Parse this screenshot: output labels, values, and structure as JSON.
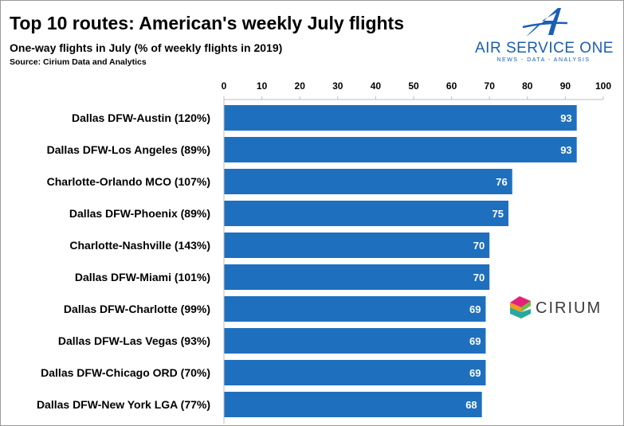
{
  "header": {
    "title": "Top 10 routes: American's weekly July flights",
    "subtitle": "One-way flights in July (% of weekly flights in 2019)",
    "source": "Source: Cirium Data and Analytics"
  },
  "logo": {
    "name": "AIR SERVICE ONE",
    "tagline": "NEWS - DATA - ANALYSIS",
    "icon": "stylized-a-icon",
    "color": "#1a5fb4"
  },
  "partner_logo": {
    "name": "CIRIUM",
    "icon": "cirium-chevron-icon"
  },
  "chart_data": {
    "type": "bar",
    "orientation": "horizontal",
    "categories": [
      "Dallas DFW-Austin (120%)",
      "Dallas DFW-Los Angeles (89%)",
      "Charlotte-Orlando MCO (107%)",
      "Dallas DFW-Phoenix (89%)",
      "Charlotte-Nashville (143%)",
      "Dallas DFW-Miami (101%)",
      "Dallas DFW-Charlotte (99%)",
      "Dallas DFW-Las Vegas (93%)",
      "Dallas DFW-Chicago ORD (70%)",
      "Dallas DFW-New York LGA (77%)"
    ],
    "values": [
      93,
      93,
      76,
      75,
      70,
      70,
      69,
      69,
      69,
      68
    ],
    "xlim": [
      0,
      100
    ],
    "ticks": [
      "0",
      "10",
      "20",
      "30",
      "40",
      "50",
      "60",
      "70",
      "80",
      "90",
      "100"
    ],
    "axis_position": "top",
    "grid": false,
    "data_labels": true,
    "bar_color": "#1f6fbf",
    "label_color": "#ffffff"
  }
}
